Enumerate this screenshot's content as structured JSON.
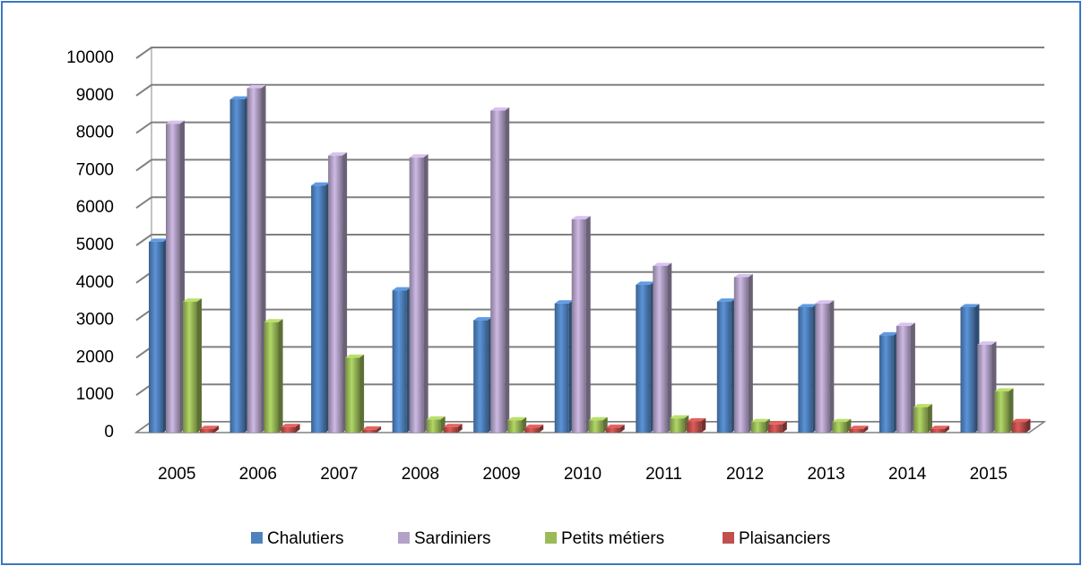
{
  "chart_data": {
    "type": "bar",
    "categories": [
      "2005",
      "2006",
      "2007",
      "2008",
      "2009",
      "2010",
      "2011",
      "2012",
      "2013",
      "2014",
      "2015"
    ],
    "series": [
      {
        "name": "Chalutiers",
        "color": "#4f81bd",
        "values": [
          5100,
          8900,
          6600,
          3800,
          3000,
          3450,
          3950,
          3500,
          3350,
          2600,
          3350
        ]
      },
      {
        "name": "Sardiniers",
        "color": "#b3a2c7",
        "values": [
          8250,
          9200,
          7400,
          7350,
          8600,
          5700,
          4450,
          4150,
          3450,
          2850,
          2350
        ]
      },
      {
        "name": "Petits métiers",
        "color": "#9bbb59",
        "values": [
          3500,
          2950,
          2000,
          350,
          330,
          330,
          380,
          280,
          280,
          680,
          1100
        ]
      },
      {
        "name": "Plaisanciers",
        "color": "#c0504d",
        "values": [
          100,
          150,
          80,
          150,
          130,
          130,
          300,
          220,
          100,
          100,
          280
        ]
      }
    ],
    "ylim": [
      0,
      10000
    ],
    "yticks": [
      0,
      1000,
      2000,
      3000,
      4000,
      5000,
      6000,
      7000,
      8000,
      9000,
      10000
    ],
    "grid": true,
    "legend": "bottom"
  }
}
